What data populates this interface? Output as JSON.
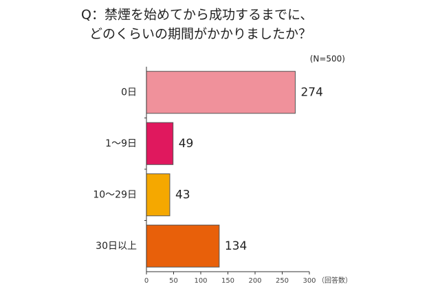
{
  "chart_data": {
    "type": "barh",
    "title": [
      "Q：禁煙を始めてから成功するまでに、",
      "どのくらいの期間がかかりましたか？"
    ],
    "subtitle": "(N=500)",
    "x_label": "（回答数）",
    "categories": [
      "0日",
      "1〜9日",
      "10〜29日",
      "30日以上"
    ],
    "values": [
      274,
      49,
      43,
      134
    ],
    "colors": [
      "#f0919b",
      "#e0185e",
      "#f5a800",
      "#e8600a"
    ],
    "xlim": [
      0,
      300
    ],
    "xticks": [
      0,
      50,
      100,
      150,
      200,
      250,
      300
    ]
  }
}
